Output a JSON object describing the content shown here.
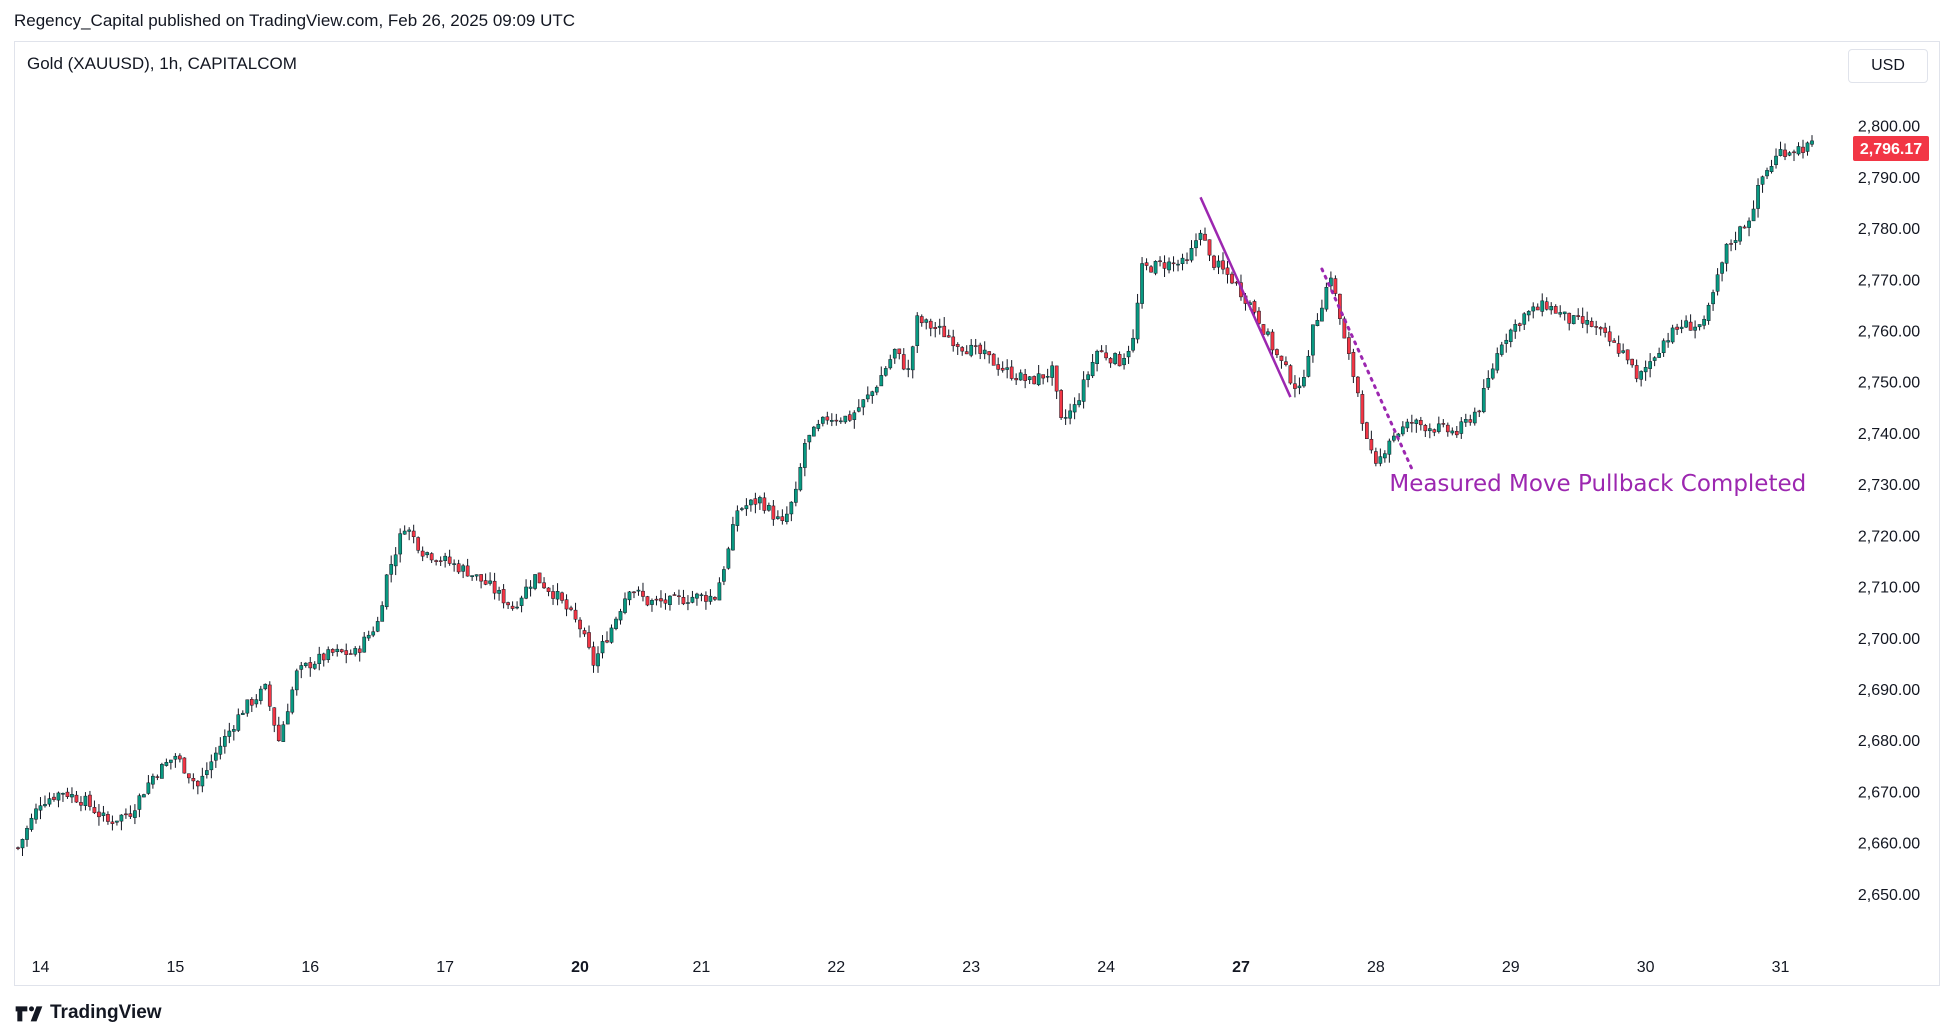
{
  "header": {
    "publisher_line": "Regency_Capital published on TradingView.com, Feb 26, 2025 09:09 UTC",
    "symbol_line": "Gold (XAUUSD), 1h, CAPITALCOM",
    "currency_label": "USD"
  },
  "footer": {
    "brand": "TradingView"
  },
  "colors": {
    "up": "#089981",
    "down": "#f23645",
    "wick": "#131722",
    "annotation": "#9c27b0",
    "price_badge": "#f23645"
  },
  "chart_data": {
    "type": "candlestick",
    "title": "Gold (XAUUSD), 1h, CAPITALCOM",
    "ylim": [
      2641,
      2805
    ],
    "y_ticks": [
      "2,650.00",
      "2,660.00",
      "2,670.00",
      "2,680.00",
      "2,690.00",
      "2,700.00",
      "2,710.00",
      "2,720.00",
      "2,730.00",
      "2,740.00",
      "2,750.00",
      "2,760.00",
      "2,770.00",
      "2,780.00",
      "2,790.00",
      "2,800.00"
    ],
    "y_tick_values": [
      2650,
      2660,
      2670,
      2680,
      2690,
      2700,
      2710,
      2720,
      2730,
      2740,
      2750,
      2760,
      2770,
      2780,
      2790,
      2800
    ],
    "x_ticks": [
      {
        "label": "14",
        "bold": false
      },
      {
        "label": "15",
        "bold": false
      },
      {
        "label": "16",
        "bold": false
      },
      {
        "label": "17",
        "bold": false
      },
      {
        "label": "20",
        "bold": true
      },
      {
        "label": "21",
        "bold": false
      },
      {
        "label": "22",
        "bold": false
      },
      {
        "label": "23",
        "bold": false
      },
      {
        "label": "24",
        "bold": false
      },
      {
        "label": "27",
        "bold": true
      },
      {
        "label": "28",
        "bold": false
      },
      {
        "label": "29",
        "bold": false
      },
      {
        "label": "30",
        "bold": false
      },
      {
        "label": "31",
        "bold": false
      }
    ],
    "x_tick_bar_index": [
      5,
      35,
      65,
      95,
      125,
      152,
      182,
      212,
      242,
      272,
      302,
      332,
      362,
      392
    ],
    "bar_count": 400,
    "close_path": [
      [
        0,
        2659
      ],
      [
        5,
        2668
      ],
      [
        10,
        2670
      ],
      [
        15,
        2668
      ],
      [
        20,
        2664
      ],
      [
        25,
        2666
      ],
      [
        30,
        2673
      ],
      [
        35,
        2677
      ],
      [
        40,
        2671
      ],
      [
        45,
        2679
      ],
      [
        50,
        2686
      ],
      [
        55,
        2690
      ],
      [
        58,
        2680
      ],
      [
        62,
        2693
      ],
      [
        65,
        2695
      ],
      [
        70,
        2697
      ],
      [
        75,
        2697
      ],
      [
        80,
        2703
      ],
      [
        82,
        2712
      ],
      [
        86,
        2722
      ],
      [
        90,
        2717
      ],
      [
        95,
        2715
      ],
      [
        100,
        2713
      ],
      [
        105,
        2710
      ],
      [
        110,
        2706
      ],
      [
        115,
        2712
      ],
      [
        120,
        2708
      ],
      [
        125,
        2702
      ],
      [
        128,
        2695
      ],
      [
        132,
        2702
      ],
      [
        136,
        2710
      ],
      [
        140,
        2707
      ],
      [
        145,
        2707
      ],
      [
        150,
        2708
      ],
      [
        155,
        2708
      ],
      [
        158,
        2717
      ],
      [
        160,
        2725
      ],
      [
        165,
        2727
      ],
      [
        170,
        2722
      ],
      [
        173,
        2728
      ],
      [
        175,
        2738
      ],
      [
        180,
        2743
      ],
      [
        185,
        2743
      ],
      [
        190,
        2748
      ],
      [
        195,
        2756
      ],
      [
        198,
        2752
      ],
      [
        200,
        2762
      ],
      [
        205,
        2760
      ],
      [
        210,
        2757
      ],
      [
        215,
        2755
      ],
      [
        220,
        2752
      ],
      [
        225,
        2750
      ],
      [
        230,
        2752
      ],
      [
        232,
        2742
      ],
      [
        235,
        2745
      ],
      [
        240,
        2756
      ],
      [
        245,
        2754
      ],
      [
        248,
        2758
      ],
      [
        250,
        2772
      ],
      [
        255,
        2773
      ],
      [
        260,
        2773
      ],
      [
        263,
        2780
      ],
      [
        265,
        2774
      ],
      [
        270,
        2770
      ],
      [
        275,
        2764
      ],
      [
        280,
        2755
      ],
      [
        285,
        2748
      ],
      [
        288,
        2760
      ],
      [
        292,
        2771
      ],
      [
        295,
        2758
      ],
      [
        298,
        2748
      ],
      [
        300,
        2738
      ],
      [
        302,
        2733
      ],
      [
        305,
        2739
      ],
      [
        310,
        2742
      ],
      [
        315,
        2741
      ],
      [
        320,
        2740
      ],
      [
        325,
        2745
      ],
      [
        330,
        2758
      ],
      [
        335,
        2763
      ],
      [
        340,
        2765
      ],
      [
        345,
        2762
      ],
      [
        350,
        2761
      ],
      [
        355,
        2757
      ],
      [
        358,
        2755
      ],
      [
        360,
        2750
      ],
      [
        363,
        2754
      ],
      [
        366,
        2758
      ],
      [
        370,
        2761
      ],
      [
        375,
        2761
      ],
      [
        378,
        2770
      ],
      [
        380,
        2776
      ],
      [
        385,
        2782
      ],
      [
        388,
        2790
      ],
      [
        392,
        2795
      ],
      [
        399,
        2796
      ]
    ],
    "last_price": "2,796.17",
    "annotations": [
      {
        "type": "line",
        "style": "solid",
        "from": [
          263,
          2786
        ],
        "to": [
          283,
          2747
        ]
      },
      {
        "type": "line",
        "style": "dotted",
        "from": [
          290,
          2772
        ],
        "to": [
          310,
          2733
        ]
      },
      {
        "type": "text",
        "text": "Measured Move Pullback Completed",
        "at": [
          305,
          2730
        ]
      }
    ],
    "grid": false,
    "legend": "none"
  }
}
